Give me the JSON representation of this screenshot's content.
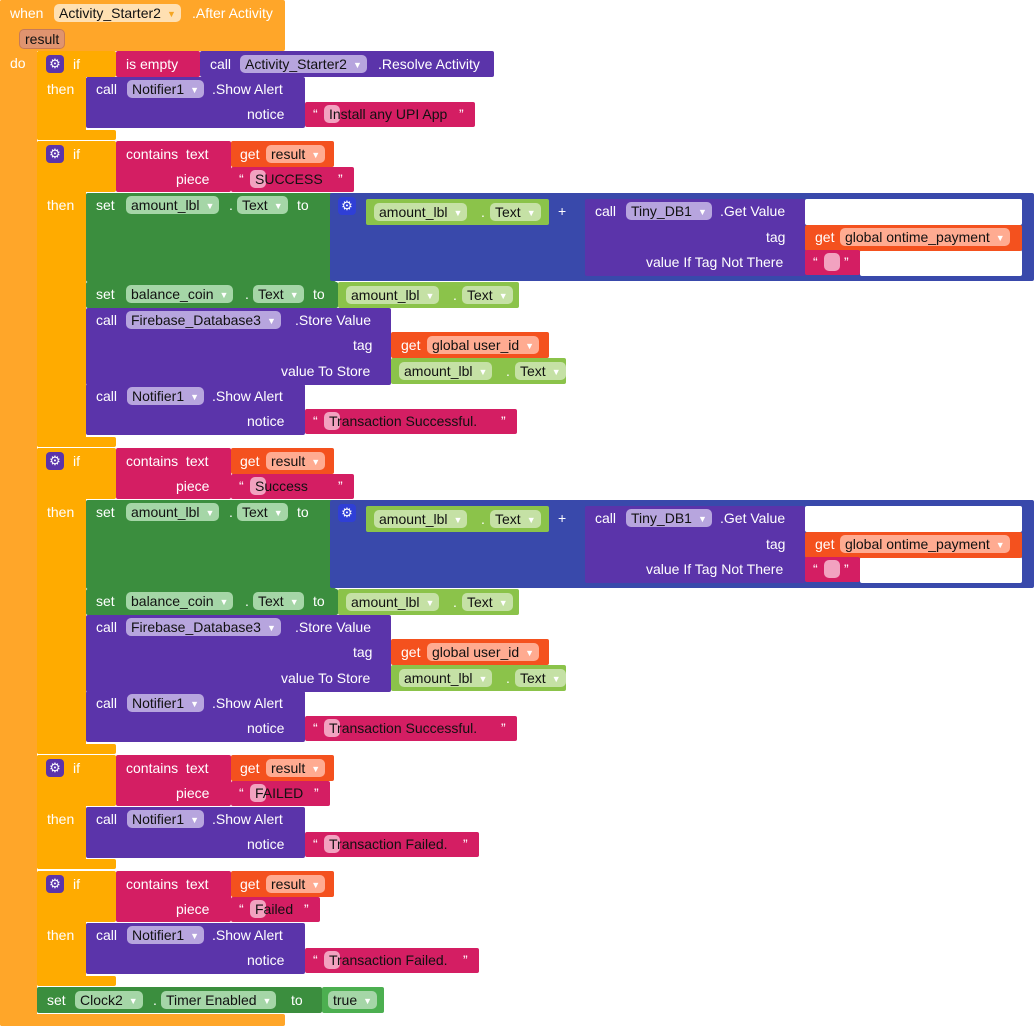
{
  "colors": {
    "event": "#FFA629",
    "control": "#FFAB00",
    "procedure_call": "#5B34AA",
    "text_block": "#D41E63",
    "get_variable": "#F4511E",
    "component_setter": "#3B8E3E",
    "component_getter": "#8BC34A",
    "math_join": "#3949AB",
    "param": "#E0946F"
  },
  "event": {
    "keyword": "when",
    "component": "Activity_Starter2",
    "event_name": ".After Activity",
    "param": "result",
    "do": "do"
  },
  "if_blocks": [
    {
      "if": "if",
      "then": "then",
      "condition": {
        "op": "is empty",
        "call": "call",
        "component": "Activity_Starter2",
        "method": ".Resolve Activity"
      },
      "alert": {
        "call": "call",
        "component": "Notifier1",
        "method": ".Show Alert",
        "arg": "notice",
        "open_quote": "“",
        "value": "Install any UPI App",
        "close_quote": "”"
      }
    },
    {
      "if": "if",
      "then": "then",
      "condition": {
        "op": "contains  text",
        "piece_label": "piece",
        "get": "get",
        "variable": "result",
        "open_quote": "“",
        "piece": "SUCCESS",
        "close_quote": "”"
      },
      "set_amount": {
        "set": "set",
        "component": "amount_lbl",
        "dot": ".",
        "property": "Text",
        "to": "to",
        "getter": {
          "component": "amount_lbl",
          "dot": ".",
          "property": "Text"
        },
        "plus": "+",
        "tinydb": {
          "call": "call",
          "component": "Tiny_DB1",
          "method": ".Get Value",
          "tag_label": "tag",
          "get": "get",
          "tag": "global ontime_payment",
          "default_label": "value If Tag Not There",
          "open_quote": "“",
          "default": "",
          "close_quote": "”"
        }
      },
      "set_balance": {
        "set": "set",
        "component": "balance_coin",
        "dot": ".",
        "property": "Text",
        "to": "to",
        "getter": {
          "component": "amount_lbl",
          "dot": ".",
          "property": "Text"
        }
      },
      "store": {
        "call": "call",
        "component": "Firebase_Database3",
        "method": ".Store Value",
        "tag_label": "tag",
        "get": "get",
        "tag": "global user_id",
        "value_label": "value To Store",
        "getter": {
          "component": "amount_lbl",
          "dot": ".",
          "property": "Text"
        }
      },
      "alert": {
        "call": "call",
        "component": "Notifier1",
        "method": ".Show Alert",
        "arg": "notice",
        "open_quote": "“",
        "value": "Transaction Successful.",
        "close_quote": "”"
      }
    },
    {
      "if": "if",
      "then": "then",
      "condition": {
        "op": "contains  text",
        "piece_label": "piece",
        "get": "get",
        "variable": "result",
        "open_quote": "“",
        "piece": "Success",
        "close_quote": "”"
      },
      "set_amount": {
        "set": "set",
        "component": "amount_lbl",
        "dot": ".",
        "property": "Text",
        "to": "to",
        "getter": {
          "component": "amount_lbl",
          "dot": ".",
          "property": "Text"
        },
        "plus": "+",
        "tinydb": {
          "call": "call",
          "component": "Tiny_DB1",
          "method": ".Get Value",
          "tag_label": "tag",
          "get": "get",
          "tag": "global ontime_payment",
          "default_label": "value If Tag Not There",
          "open_quote": "“",
          "default": "",
          "close_quote": "”"
        }
      },
      "set_balance": {
        "set": "set",
        "component": "balance_coin",
        "dot": ".",
        "property": "Text",
        "to": "to",
        "getter": {
          "component": "amount_lbl",
          "dot": ".",
          "property": "Text"
        }
      },
      "store": {
        "call": "call",
        "component": "Firebase_Database3",
        "method": ".Store Value",
        "tag_label": "tag",
        "get": "get",
        "tag": "global user_id",
        "value_label": "value To Store",
        "getter": {
          "component": "amount_lbl",
          "dot": ".",
          "property": "Text"
        }
      },
      "alert": {
        "call": "call",
        "component": "Notifier1",
        "method": ".Show Alert",
        "arg": "notice",
        "open_quote": "“",
        "value": "Transaction Successful.",
        "close_quote": "”"
      }
    },
    {
      "if": "if",
      "then": "then",
      "condition": {
        "op": "contains  text",
        "piece_label": "piece",
        "get": "get",
        "variable": "result",
        "open_quote": "“",
        "piece": "FAILED",
        "close_quote": "”"
      },
      "alert": {
        "call": "call",
        "component": "Notifier1",
        "method": ".Show Alert",
        "arg": "notice",
        "open_quote": "“",
        "value": "Transaction Failed.",
        "close_quote": "”"
      }
    },
    {
      "if": "if",
      "then": "then",
      "condition": {
        "op": "contains  text",
        "piece_label": "piece",
        "get": "get",
        "variable": "result",
        "open_quote": "“",
        "piece": "Failed",
        "close_quote": "”"
      },
      "alert": {
        "call": "call",
        "component": "Notifier1",
        "method": ".Show Alert",
        "arg": "notice",
        "open_quote": "“",
        "value": "Transaction Failed.",
        "close_quote": "”"
      }
    }
  ],
  "set_timer": {
    "set": "set",
    "component": "Clock2",
    "dot": ".",
    "property": "Timer Enabled",
    "to": "to",
    "value": "true"
  }
}
